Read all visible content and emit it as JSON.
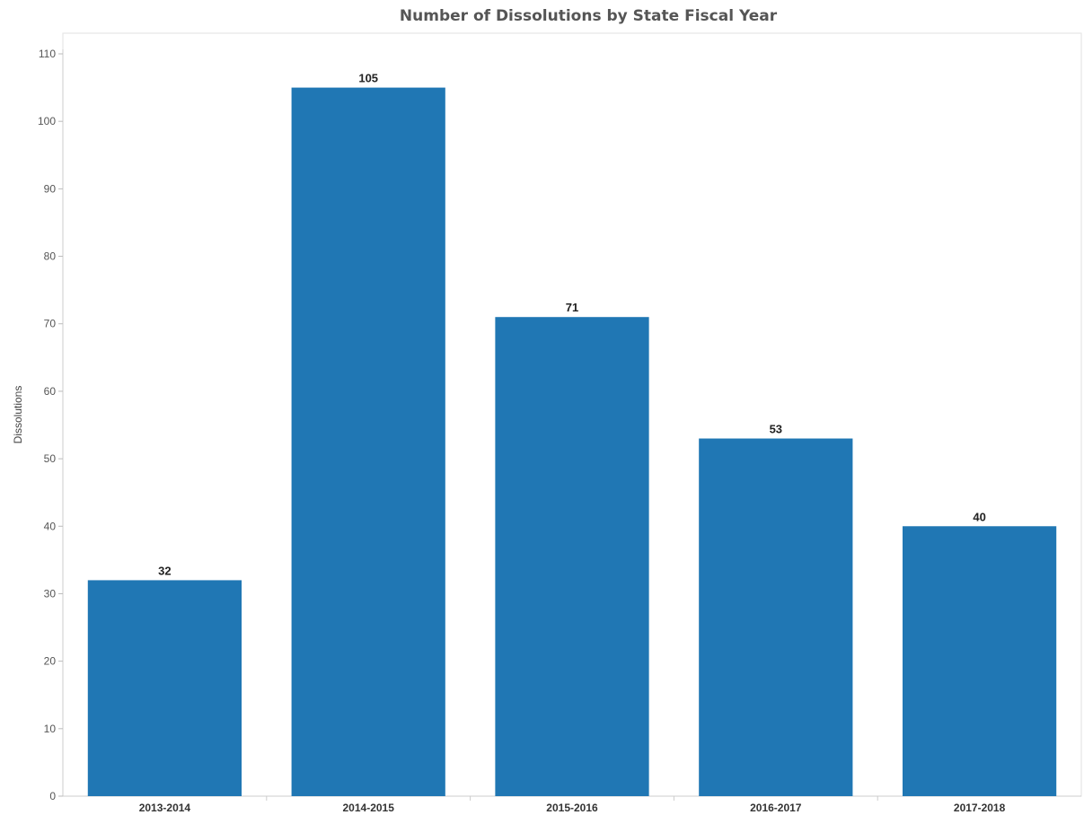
{
  "chart_data": {
    "type": "bar",
    "title": "Number of Dissolutions by State Fiscal Year",
    "xlabel": "",
    "ylabel": "Dissolutions",
    "categories": [
      "2013-2014",
      "2014-2015",
      "2015-2016",
      "2016-2017",
      "2017-2018"
    ],
    "values": [
      32,
      105,
      71,
      53,
      40
    ],
    "ylim": [
      0,
      110
    ],
    "yticks": [
      0,
      10,
      20,
      30,
      40,
      50,
      60,
      70,
      80,
      90,
      100,
      110
    ],
    "grid": false,
    "legend": "none",
    "bar_color": "#2077b4"
  }
}
